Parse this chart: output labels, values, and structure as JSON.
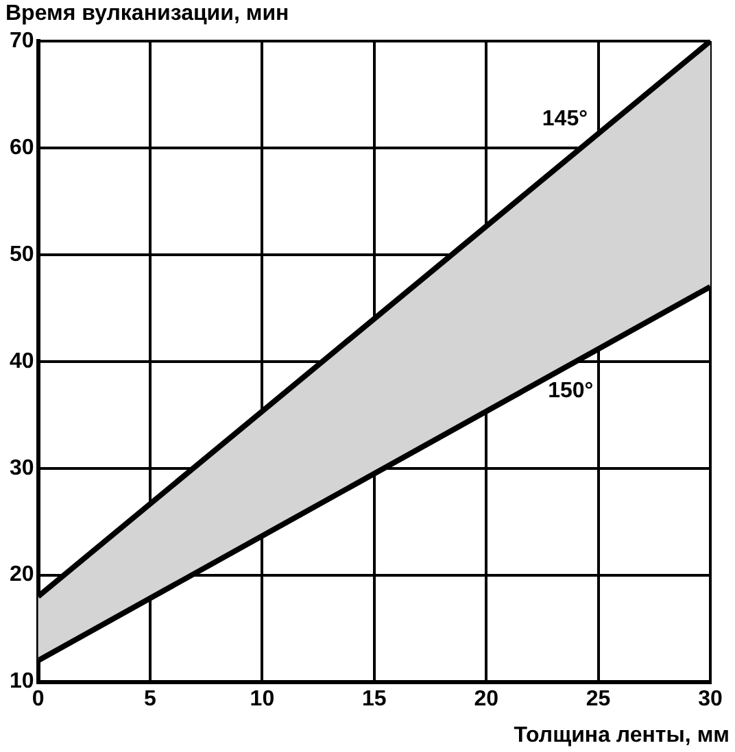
{
  "chart_data": {
    "type": "line",
    "xlabel": "Толщина ленты, мм",
    "ylabel": "Время вулканизации, мин",
    "x": [
      0,
      30
    ],
    "xlim": [
      0,
      30
    ],
    "xticks": [
      0,
      5,
      10,
      15,
      20,
      25,
      30
    ],
    "ylim": [
      10,
      70
    ],
    "yticks": [
      10,
      20,
      30,
      40,
      50,
      60,
      70
    ],
    "grid": true,
    "legend": false,
    "marker": "none",
    "line_style": "solid",
    "series": [
      {
        "name": "145°",
        "color": "#000000",
        "values": [
          18,
          70
        ]
      },
      {
        "name": "150°",
        "color": "#000000",
        "values": [
          12,
          47
        ],
        "lower": [
          12,
          47
        ],
        "upper": [
          18,
          70
        ]
      }
    ]
  }
}
